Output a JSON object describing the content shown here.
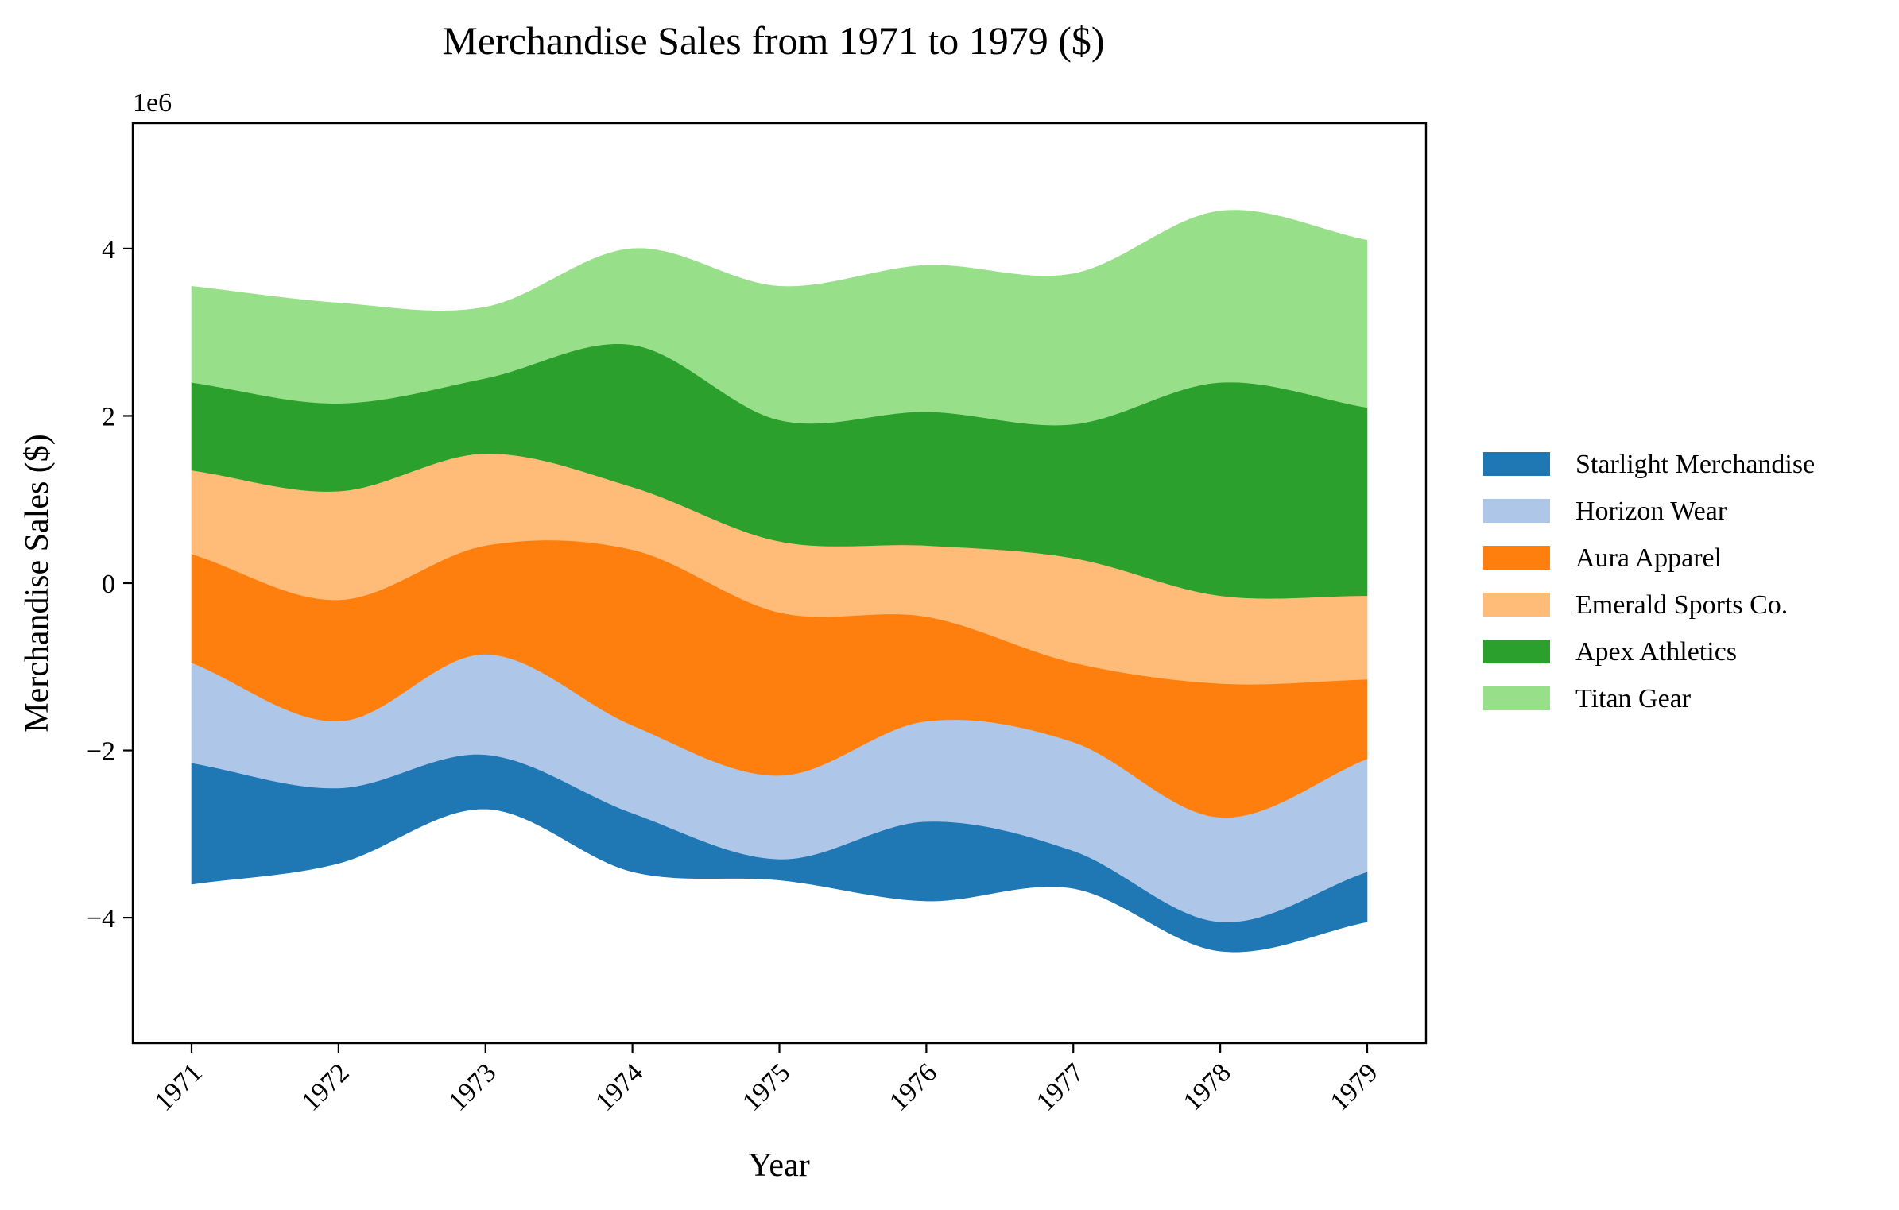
{
  "chart_data": {
    "type": "area",
    "subtype": "streamgraph",
    "title": "Merchandise Sales from 1971 to 1979 ($)",
    "xlabel": "Year",
    "ylabel": "Merchandise Sales ($)",
    "y_offset_label": "1e6",
    "categories": [
      "1971",
      "1972",
      "1973",
      "1974",
      "1975",
      "1976",
      "1977",
      "1978",
      "1979"
    ],
    "x": [
      1971,
      1972,
      1973,
      1974,
      1975,
      1976,
      1977,
      1978,
      1979
    ],
    "ylim": [
      -5.5,
      5.5
    ],
    "yticks": [
      -4,
      -2,
      0,
      2,
      4
    ],
    "ytick_labels": [
      "−4",
      "−2",
      "0",
      "2",
      "4"
    ],
    "grid": false,
    "legend_position": "right",
    "baseline": [
      -3.6,
      -3.35,
      -2.7,
      -3.45,
      -3.55,
      -3.8,
      -3.65,
      -4.4,
      -4.05
    ],
    "series": [
      {
        "name": "Starlight Merchandise",
        "color": "#1f77b4",
        "values": [
          1.45,
          0.9,
          0.65,
          0.7,
          0.25,
          0.95,
          0.45,
          0.35,
          0.6
        ]
      },
      {
        "name": "Horizon Wear",
        "color": "#aec7e8",
        "values": [
          1.2,
          0.8,
          1.2,
          1.05,
          1.0,
          1.2,
          1.3,
          1.25,
          1.35
        ]
      },
      {
        "name": "Aura Apparel",
        "color": "#ff7f0e",
        "values": [
          1.3,
          1.45,
          1.3,
          2.1,
          1.95,
          1.25,
          0.95,
          1.6,
          0.95
        ]
      },
      {
        "name": "Emerald Sports Co.",
        "color": "#ffbb78",
        "values": [
          1.0,
          1.3,
          1.1,
          0.75,
          0.85,
          0.85,
          1.25,
          1.05,
          1.0
        ]
      },
      {
        "name": "Apex Athletics",
        "color": "#2ca02c",
        "values": [
          1.05,
          1.05,
          0.9,
          1.7,
          1.45,
          1.6,
          1.6,
          2.55,
          2.25
        ]
      },
      {
        "name": "Titan Gear",
        "color": "#98df8a",
        "values": [
          1.15,
          1.2,
          0.85,
          1.15,
          1.6,
          1.75,
          1.8,
          2.05,
          2.0
        ]
      }
    ]
  }
}
